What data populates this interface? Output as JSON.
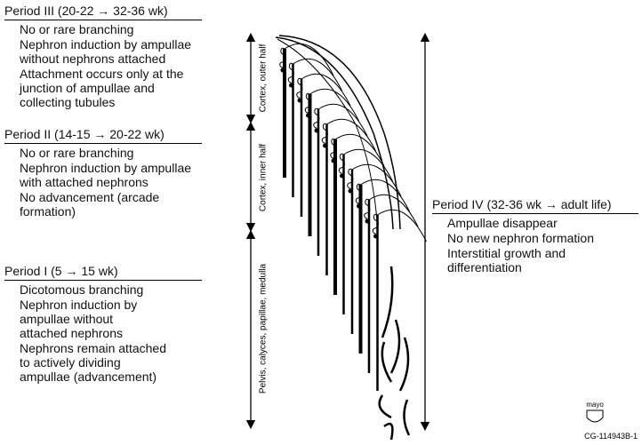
{
  "periods": [
    {
      "title": "Period III (20-22 → 32-36 wk)",
      "items": [
        [
          "No or rare branching"
        ],
        [
          "Nephron induction by ampullae",
          "without nephrons attached"
        ],
        [
          "Attachment occurs only at the",
          "junction of ampullae and",
          "collecting tubules"
        ]
      ]
    },
    {
      "title": "Period II (14-15 → 20-22 wk)",
      "items": [
        [
          "No or rare branching"
        ],
        [
          "Nephron induction by ampullae",
          "with attached nephrons"
        ],
        [
          "No advancement (arcade",
          "formation)"
        ]
      ]
    },
    {
      "title": "Period I (5 → 15 wk)",
      "items": [
        [
          "Dicotomous branching"
        ],
        [
          "Nephron induction by",
          "ampullae without",
          "attached nephrons"
        ],
        [
          "Nephrons remain attached",
          "to actively dividing",
          "ampullae (advancement)"
        ]
      ]
    },
    {
      "title": "Period IV (32-36 wk → adult life)",
      "items": [
        [
          "Ampullae disappear"
        ],
        [
          "No new nephron formation"
        ],
        [
          "Interstitial growth and",
          "differentiation"
        ]
      ]
    }
  ],
  "zones": [
    "Cortex, outer half",
    "Cortex, inner half",
    "Pelvis, calyces, papillae, medulla"
  ],
  "logo": "mayo",
  "code": "CG-114943B-1"
}
